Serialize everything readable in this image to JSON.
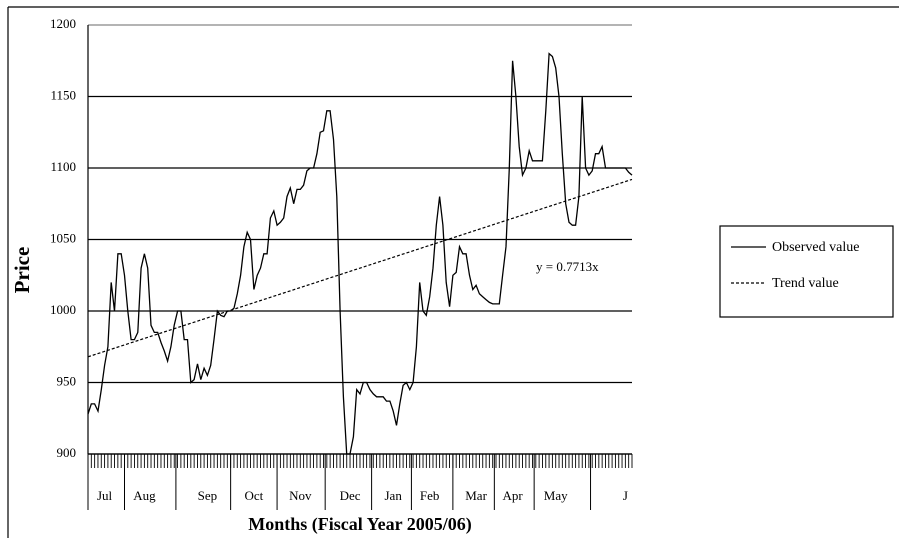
{
  "chart_data": {
    "type": "line",
    "y_label": "Price",
    "x_label": "Months (Fiscal Year 2005/06)",
    "annotation": "y = 0.7713x",
    "categories": [
      null,
      null,
      null,
      null,
      null,
      "Jul",
      null,
      null,
      null,
      null,
      null,
      null,
      null,
      null,
      null,
      null,
      null,
      "Aug",
      null,
      null,
      null,
      null,
      null,
      null,
      null,
      null,
      null,
      null,
      null,
      null,
      null,
      null,
      null,
      null,
      null,
      null,
      "Sep",
      null,
      null,
      null,
      null,
      null,
      null,
      null,
      null,
      null,
      null,
      null,
      null,
      null,
      "Oct",
      null,
      null,
      null,
      null,
      null,
      null,
      null,
      null,
      null,
      null,
      null,
      null,
      null,
      "Nov",
      null,
      null,
      null,
      null,
      null,
      null,
      null,
      null,
      null,
      null,
      null,
      null,
      null,
      null,
      "Dec",
      null,
      null,
      null,
      null,
      null,
      null,
      null,
      null,
      null,
      null,
      null,
      null,
      "Jan",
      null,
      null,
      null,
      null,
      null,
      null,
      null,
      null,
      null,
      null,
      "Feb",
      null,
      null,
      null,
      null,
      null,
      null,
      null,
      null,
      null,
      null,
      null,
      null,
      null,
      "Mar",
      null,
      null,
      null,
      null,
      null,
      null,
      null,
      null,
      null,
      null,
      "Apr",
      null,
      null,
      null,
      null,
      null,
      null,
      null,
      null,
      null,
      null,
      null,
      null,
      "May",
      null,
      null,
      null,
      null,
      null,
      null,
      null,
      null,
      null,
      null,
      null,
      null,
      null,
      null,
      null,
      null,
      null,
      null,
      null,
      null,
      "J",
      null,
      null
    ],
    "series": [
      {
        "name": "Observed value",
        "color": "#000000",
        "values": [
          928,
          935,
          935,
          930,
          945,
          962,
          975,
          1020,
          1000,
          1040,
          1040,
          1025,
          1000,
          980,
          980,
          985,
          1030,
          1040,
          1030,
          990,
          985,
          985,
          978,
          972,
          965,
          975,
          990,
          1000,
          1000,
          980,
          980,
          950,
          952,
          963,
          952,
          960,
          955,
          962,
          980,
          1000,
          997,
          996,
          1000,
          1000,
          1002,
          1012,
          1025,
          1045,
          1055,
          1050,
          1015,
          1025,
          1030,
          1040,
          1040,
          1065,
          1070,
          1060,
          1062,
          1065,
          1080,
          1086,
          1075,
          1085,
          1085,
          1088,
          1098,
          1100,
          1100,
          1110,
          1125,
          1126,
          1140,
          1140,
          1120,
          1080,
          1000,
          940,
          900,
          900,
          912,
          945,
          942,
          950,
          950,
          945,
          942,
          940,
          940,
          940,
          937,
          937,
          930,
          920,
          935,
          948,
          950,
          945,
          950,
          975,
          1020,
          1000,
          997,
          1010,
          1030,
          1060,
          1080,
          1060,
          1020,
          1003,
          1025,
          1027,
          1045,
          1040,
          1040,
          1025,
          1015,
          1018,
          1012,
          1010,
          1008,
          1006,
          1005,
          1005,
          1005,
          1025,
          1045,
          1100,
          1175,
          1150,
          1115,
          1095,
          1100,
          1112,
          1105,
          1105,
          1105,
          1105,
          1140,
          1180,
          1178,
          1170,
          1150,
          1110,
          1075,
          1062,
          1060,
          1060,
          1080,
          1150,
          1100,
          1095,
          1098,
          1110,
          1110,
          1115,
          1100,
          1100,
          1100,
          1100,
          1100,
          1100,
          1100,
          1097,
          1095
        ]
      },
      {
        "name": "Trend value",
        "color": "#000000",
        "dashed": true,
        "x": [
          0,
          164
        ],
        "values": [
          968,
          1092
        ]
      }
    ],
    "ylim": [
      900,
      1200
    ],
    "yticks": [
      900,
      950,
      1000,
      1050,
      1100,
      1150,
      1200
    ],
    "grid": true,
    "legend": "right"
  }
}
